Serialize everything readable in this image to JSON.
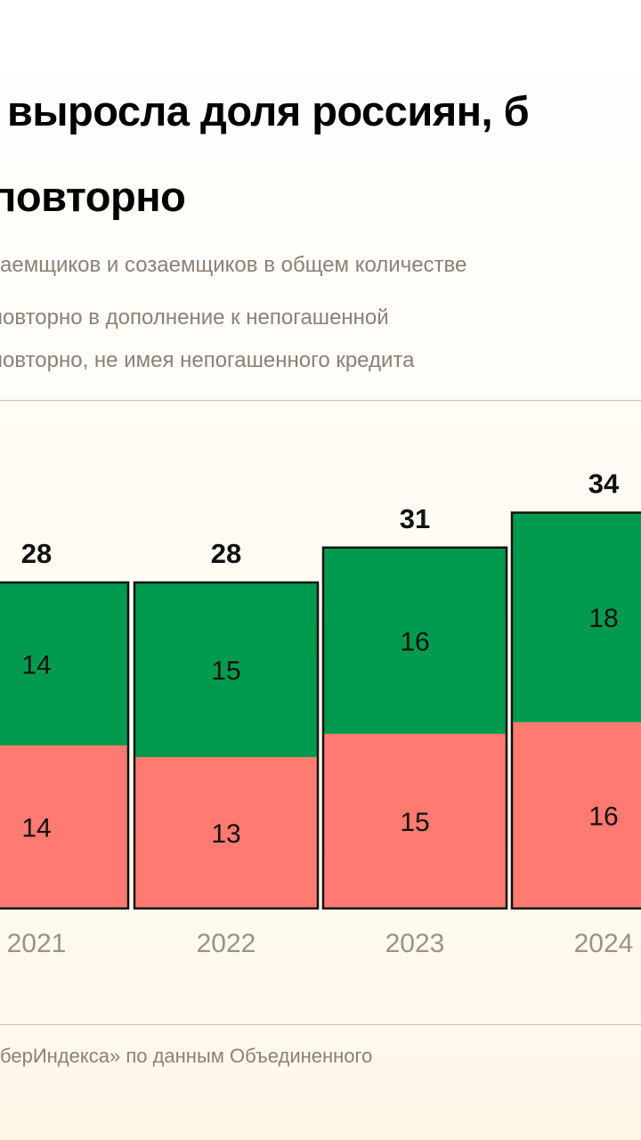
{
  "title": [
    "выросла доля россиян, б",
    "повторно"
  ],
  "subtitle": "аемщиков и созаемщиков в общем количестве",
  "legend": [
    {
      "label": "повторно в дополнение к непогашенной",
      "color": "#009a4e"
    },
    {
      "label": "повторно, не имея непогашенного кредита",
      "color": "#ff7a70"
    }
  ],
  "source": "берИндекса» по данным Объединенного",
  "chart_data": {
    "type": "bar",
    "stacked": true,
    "categories": [
      "2021",
      "2022",
      "2023",
      "2024"
    ],
    "series": [
      {
        "values": [
          14,
          13,
          15,
          16
        ],
        "color": "#ff7a70"
      },
      {
        "values": [
          14,
          15,
          16,
          18
        ],
        "color": "#009a4e"
      }
    ],
    "totals": [
      "28",
      "28",
      "31",
      "34"
    ],
    "ylim": [
      0,
      34
    ],
    "grid": false
  }
}
